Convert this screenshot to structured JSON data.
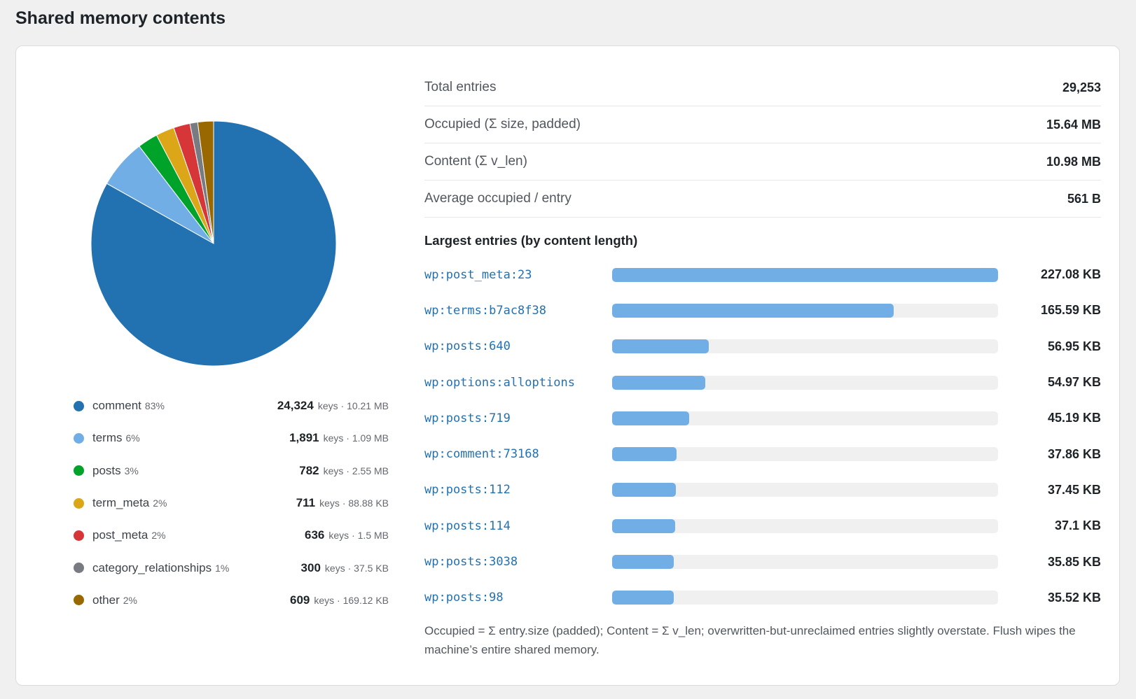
{
  "page": {
    "title": "Shared memory contents"
  },
  "pie": {
    "slices": [
      {
        "name": "comment",
        "value": 24324,
        "color": "#2271b1"
      },
      {
        "name": "terms",
        "value": 1891,
        "color": "#72aee6"
      },
      {
        "name": "posts",
        "value": 782,
        "color": "#00a32a"
      },
      {
        "name": "term_meta",
        "value": 711,
        "color": "#dba617"
      },
      {
        "name": "post_meta",
        "value": 636,
        "color": "#d63638"
      },
      {
        "name": "category_relationships",
        "value": 300,
        "color": "#787c82"
      },
      {
        "name": "other",
        "value": 609,
        "color": "#996800"
      }
    ]
  },
  "legend": [
    {
      "name": "comment",
      "pct": "83%",
      "keys": "24,324",
      "keys_word": "keys",
      "size": "10.21 MB",
      "color": "#2271b1"
    },
    {
      "name": "terms",
      "pct": "6%",
      "keys": "1,891",
      "keys_word": "keys",
      "size": "1.09 MB",
      "color": "#72aee6"
    },
    {
      "name": "posts",
      "pct": "3%",
      "keys": "782",
      "keys_word": "keys",
      "size": "2.55 MB",
      "color": "#00a32a"
    },
    {
      "name": "term_meta",
      "pct": "2%",
      "keys": "711",
      "keys_word": "keys",
      "size": "88.88 KB",
      "color": "#dba617"
    },
    {
      "name": "post_meta",
      "pct": "2%",
      "keys": "636",
      "keys_word": "keys",
      "size": "1.5 MB",
      "color": "#d63638"
    },
    {
      "name": "category_relationships",
      "pct": "1%",
      "keys": "300",
      "keys_word": "keys",
      "size": "37.5 KB",
      "color": "#787c82"
    },
    {
      "name": "other",
      "pct": "2%",
      "keys": "609",
      "keys_word": "keys",
      "size": "169.12 KB",
      "color": "#996800"
    }
  ],
  "stats": [
    {
      "label": "Total entries",
      "value": "29,253"
    },
    {
      "label": "Occupied (Σ size, padded)",
      "value": "15.64 MB"
    },
    {
      "label": "Content (Σ v_len)",
      "value": "10.98 MB"
    },
    {
      "label": "Average occupied / entry",
      "value": "561 B"
    }
  ],
  "largest": {
    "heading": "Largest entries (by content length)",
    "max_kb": 227.08,
    "entries": [
      {
        "key": "wp:post_meta:23",
        "kb": 227.08,
        "value": "227.08 KB"
      },
      {
        "key": "wp:terms:b7ac8f38",
        "kb": 165.59,
        "value": "165.59 KB"
      },
      {
        "key": "wp:posts:640",
        "kb": 56.95,
        "value": "56.95 KB"
      },
      {
        "key": "wp:options:alloptions",
        "kb": 54.97,
        "value": "54.97 KB"
      },
      {
        "key": "wp:posts:719",
        "kb": 45.19,
        "value": "45.19 KB"
      },
      {
        "key": "wp:comment:73168",
        "kb": 37.86,
        "value": "37.86 KB"
      },
      {
        "key": "wp:posts:112",
        "kb": 37.45,
        "value": "37.45 KB"
      },
      {
        "key": "wp:posts:114",
        "kb": 37.1,
        "value": "37.1 KB"
      },
      {
        "key": "wp:posts:3038",
        "kb": 35.85,
        "value": "35.85 KB"
      },
      {
        "key": "wp:posts:98",
        "kb": 35.52,
        "value": "35.52 KB"
      }
    ]
  },
  "note": "Occupied = Σ entry.size (padded); Content = Σ v_len; overwritten-but-unreclaimed entries slightly overstate. Flush wipes the machine’s entire shared memory."
}
